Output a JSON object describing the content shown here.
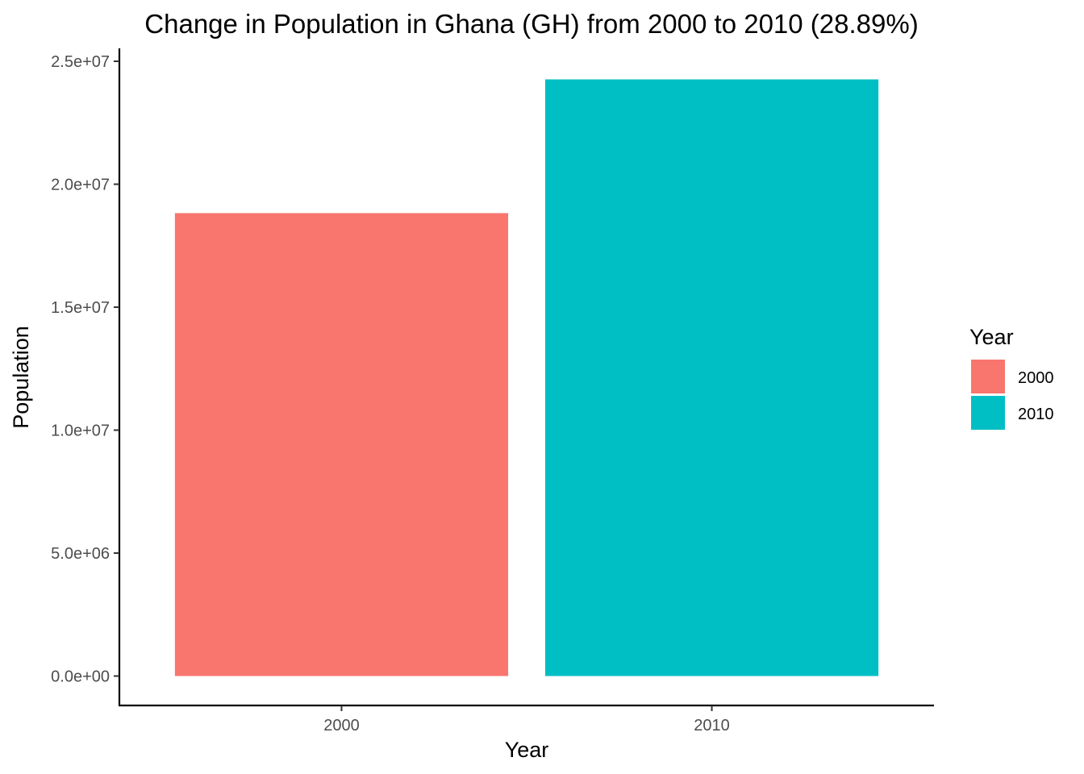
{
  "chart_data": {
    "type": "bar",
    "title": "Change in Population in Ghana (GH) from 2000 to 2010 (28.89%)",
    "xlabel": "Year",
    "ylabel": "Population",
    "categories": [
      "2000",
      "2010"
    ],
    "values": [
      18824994,
      24262901
    ],
    "colors": [
      "#F8766D",
      "#00BFC4"
    ],
    "ylim": [
      0,
      25000000
    ],
    "yticks": [
      0,
      5000000,
      10000000,
      15000000,
      20000000,
      25000000
    ],
    "ytick_labels": [
      "0.0e+00",
      "5.0e+06",
      "1.0e+07",
      "1.5e+07",
      "2.0e+07",
      "2.5e+07"
    ],
    "grid": false,
    "legend": {
      "title": "Year",
      "position": "right",
      "entries": [
        "2000",
        "2010"
      ]
    }
  }
}
